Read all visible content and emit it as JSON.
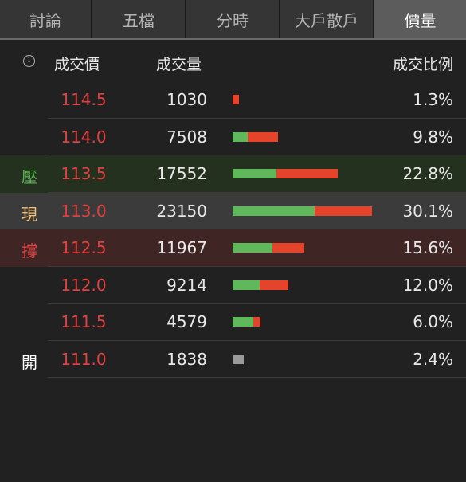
{
  "tabs": [
    {
      "label": "討論",
      "active": false
    },
    {
      "label": "五檔",
      "active": false
    },
    {
      "label": "分時",
      "active": false
    },
    {
      "label": "大戶散戶",
      "active": false
    },
    {
      "label": "價量",
      "active": true
    }
  ],
  "header": {
    "info_icon": "info-icon",
    "price_label": "成交價",
    "volume_label": "成交量",
    "ratio_label": "成交比例"
  },
  "colors": {
    "price_red": "#e04040",
    "buy_green": "#5fb95a",
    "sell_red": "#e5442b",
    "neutral_gray": "#9a9a9a",
    "tag_pressure": "#5fb95a",
    "tag_current": "#f2c07a",
    "tag_support": "#e04040",
    "tag_open": "#ffffff"
  },
  "rows": [
    {
      "tag": "",
      "tag_type": "",
      "price": "114.5",
      "volume": "1030",
      "ratio": "1.3%",
      "buy_share": 0,
      "sell_share": 1,
      "bar_fraction": 0.043
    },
    {
      "tag": "",
      "tag_type": "",
      "price": "114.0",
      "volume": "7508",
      "ratio": "9.8%",
      "buy_share": 0.33,
      "sell_share": 0.67,
      "bar_fraction": 0.326
    },
    {
      "tag": "壓",
      "tag_type": "pressure",
      "price": "113.5",
      "volume": "17552",
      "ratio": "22.8%",
      "buy_share": 0.42,
      "sell_share": 0.58,
      "bar_fraction": 0.757
    },
    {
      "tag": "現",
      "tag_type": "current",
      "price": "113.0",
      "volume": "23150",
      "ratio": "30.1%",
      "buy_share": 0.59,
      "sell_share": 0.41,
      "bar_fraction": 1.0
    },
    {
      "tag": "撐",
      "tag_type": "support",
      "price": "112.5",
      "volume": "11967",
      "ratio": "15.6%",
      "buy_share": 0.56,
      "sell_share": 0.44,
      "bar_fraction": 0.514
    },
    {
      "tag": "",
      "tag_type": "",
      "price": "112.0",
      "volume": "9214",
      "ratio": "12.0%",
      "buy_share": 0.49,
      "sell_share": 0.51,
      "bar_fraction": 0.4
    },
    {
      "tag": "",
      "tag_type": "",
      "price": "111.5",
      "volume": "4579",
      "ratio": "6.0%",
      "buy_share": 0.75,
      "sell_share": 0.25,
      "bar_fraction": 0.2
    },
    {
      "tag": "開",
      "tag_type": "open",
      "price": "111.0",
      "volume": "1838",
      "ratio": "2.4%",
      "buy_share": 0,
      "sell_share": 0,
      "neutral": true,
      "bar_fraction": 0.08
    }
  ]
}
